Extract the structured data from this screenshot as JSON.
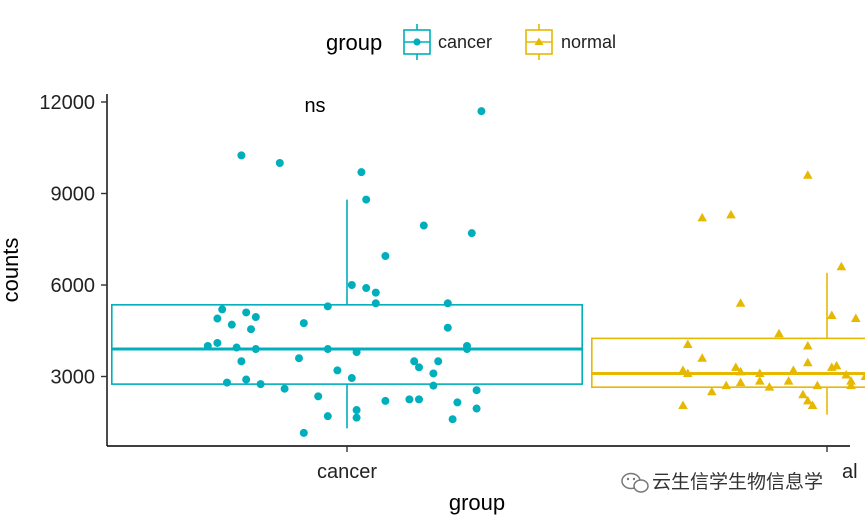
{
  "chart_data": {
    "type": "box",
    "title": "",
    "xlabel": "group",
    "ylabel": "counts",
    "categories": [
      "cancer",
      "normal"
    ],
    "ylim": [
      500,
      12500
    ],
    "yticks": [
      3000,
      6000,
      9000,
      12000
    ],
    "ytick_labels": [
      "3000",
      "6000",
      "9000",
      "12000"
    ],
    "legend": {
      "title": "group",
      "position": "top",
      "items": [
        {
          "label": "cancer",
          "color": "#00AFBB",
          "marker": "circle"
        },
        {
          "label": "normal",
          "color": "#E7B800",
          "marker": "triangle"
        }
      ]
    },
    "annotation": "ns",
    "boxes": [
      {
        "group": "cancer",
        "whisker_low": 1300,
        "q1": 2750,
        "median": 3900,
        "q3": 5350,
        "whisker_high": 8800
      },
      {
        "group": "normal",
        "whisker_low": 1750,
        "q1": 2650,
        "median": 3100,
        "q3": 4250,
        "whisker_high": 6400
      }
    ],
    "series": [
      {
        "name": "cancer",
        "color": "#00AFBB",
        "points": [
          [
            0.78,
            10250
          ],
          [
            0.86,
            10000
          ],
          [
            1.03,
            9700
          ],
          [
            1.04,
            8800
          ],
          [
            1.28,
            11700
          ],
          [
            1.16,
            7950
          ],
          [
            1.26,
            7700
          ],
          [
            1.08,
            6950
          ],
          [
            1.01,
            6000
          ],
          [
            1.04,
            5900
          ],
          [
            1.06,
            5750
          ],
          [
            1.06,
            5400
          ],
          [
            1.21,
            5400
          ],
          [
            0.96,
            5300
          ],
          [
            0.74,
            5200
          ],
          [
            0.79,
            5100
          ],
          [
            0.73,
            4900
          ],
          [
            0.81,
            4950
          ],
          [
            0.76,
            4700
          ],
          [
            0.8,
            4550
          ],
          [
            0.91,
            4750
          ],
          [
            1.21,
            4600
          ],
          [
            0.71,
            4000
          ],
          [
            0.73,
            4100
          ],
          [
            0.77,
            3950
          ],
          [
            0.81,
            3900
          ],
          [
            0.96,
            3900
          ],
          [
            1.02,
            3800
          ],
          [
            1.25,
            3900
          ],
          [
            1.25,
            4000
          ],
          [
            0.9,
            3600
          ],
          [
            1.14,
            3500
          ],
          [
            1.19,
            3500
          ],
          [
            0.78,
            3500
          ],
          [
            1.15,
            3300
          ],
          [
            0.98,
            3200
          ],
          [
            1.18,
            3100
          ],
          [
            1.01,
            2950
          ],
          [
            0.75,
            2800
          ],
          [
            0.79,
            2900
          ],
          [
            0.82,
            2750
          ],
          [
            1.18,
            2700
          ],
          [
            0.87,
            2600
          ],
          [
            1.27,
            2550
          ],
          [
            0.94,
            2350
          ],
          [
            1.08,
            2200
          ],
          [
            1.13,
            2250
          ],
          [
            1.15,
            2250
          ],
          [
            1.23,
            2150
          ],
          [
            1.02,
            1900
          ],
          [
            1.27,
            1950
          ],
          [
            0.96,
            1700
          ],
          [
            1.02,
            1650
          ],
          [
            1.22,
            1600
          ],
          [
            0.91,
            1150
          ]
        ]
      },
      {
        "name": "normal",
        "color": "#E7B800",
        "points": [
          [
            1.96,
            9600
          ],
          [
            1.74,
            8200
          ],
          [
            1.8,
            8300
          ],
          [
            2.13,
            7300
          ],
          [
            2.16,
            7100
          ],
          [
            2.09,
            6650
          ],
          [
            2.03,
            6600
          ],
          [
            2.26,
            6400
          ],
          [
            1.82,
            5400
          ],
          [
            2.01,
            5000
          ],
          [
            2.06,
            4900
          ],
          [
            2.15,
            5000
          ],
          [
            1.9,
            4400
          ],
          [
            2.12,
            4300
          ],
          [
            1.71,
            4050
          ],
          [
            1.96,
            4000
          ],
          [
            2.2,
            3800
          ],
          [
            1.74,
            3600
          ],
          [
            1.96,
            3450
          ],
          [
            2.02,
            3350
          ],
          [
            1.81,
            3300
          ],
          [
            2.01,
            3300
          ],
          [
            2.15,
            3300
          ],
          [
            1.7,
            3200
          ],
          [
            1.82,
            3150
          ],
          [
            1.86,
            3100
          ],
          [
            1.93,
            3200
          ],
          [
            1.71,
            3100
          ],
          [
            2.04,
            3050
          ],
          [
            2.08,
            3000
          ],
          [
            2.12,
            3000
          ],
          [
            2.15,
            3150
          ],
          [
            2.18,
            3100
          ],
          [
            1.86,
            2850
          ],
          [
            1.92,
            2850
          ],
          [
            2.05,
            2850
          ],
          [
            1.79,
            2700
          ],
          [
            1.82,
            2800
          ],
          [
            1.88,
            2650
          ],
          [
            1.98,
            2700
          ],
          [
            2.05,
            2700
          ],
          [
            2.09,
            2650
          ],
          [
            1.76,
            2500
          ],
          [
            1.95,
            2400
          ],
          [
            2.13,
            2300
          ],
          [
            1.96,
            2200
          ],
          [
            1.97,
            2050
          ],
          [
            1.7,
            2050
          ],
          [
            2.21,
            1700
          ]
        ]
      }
    ]
  },
  "watermark": {
    "text": "云生信学生物信息学"
  }
}
